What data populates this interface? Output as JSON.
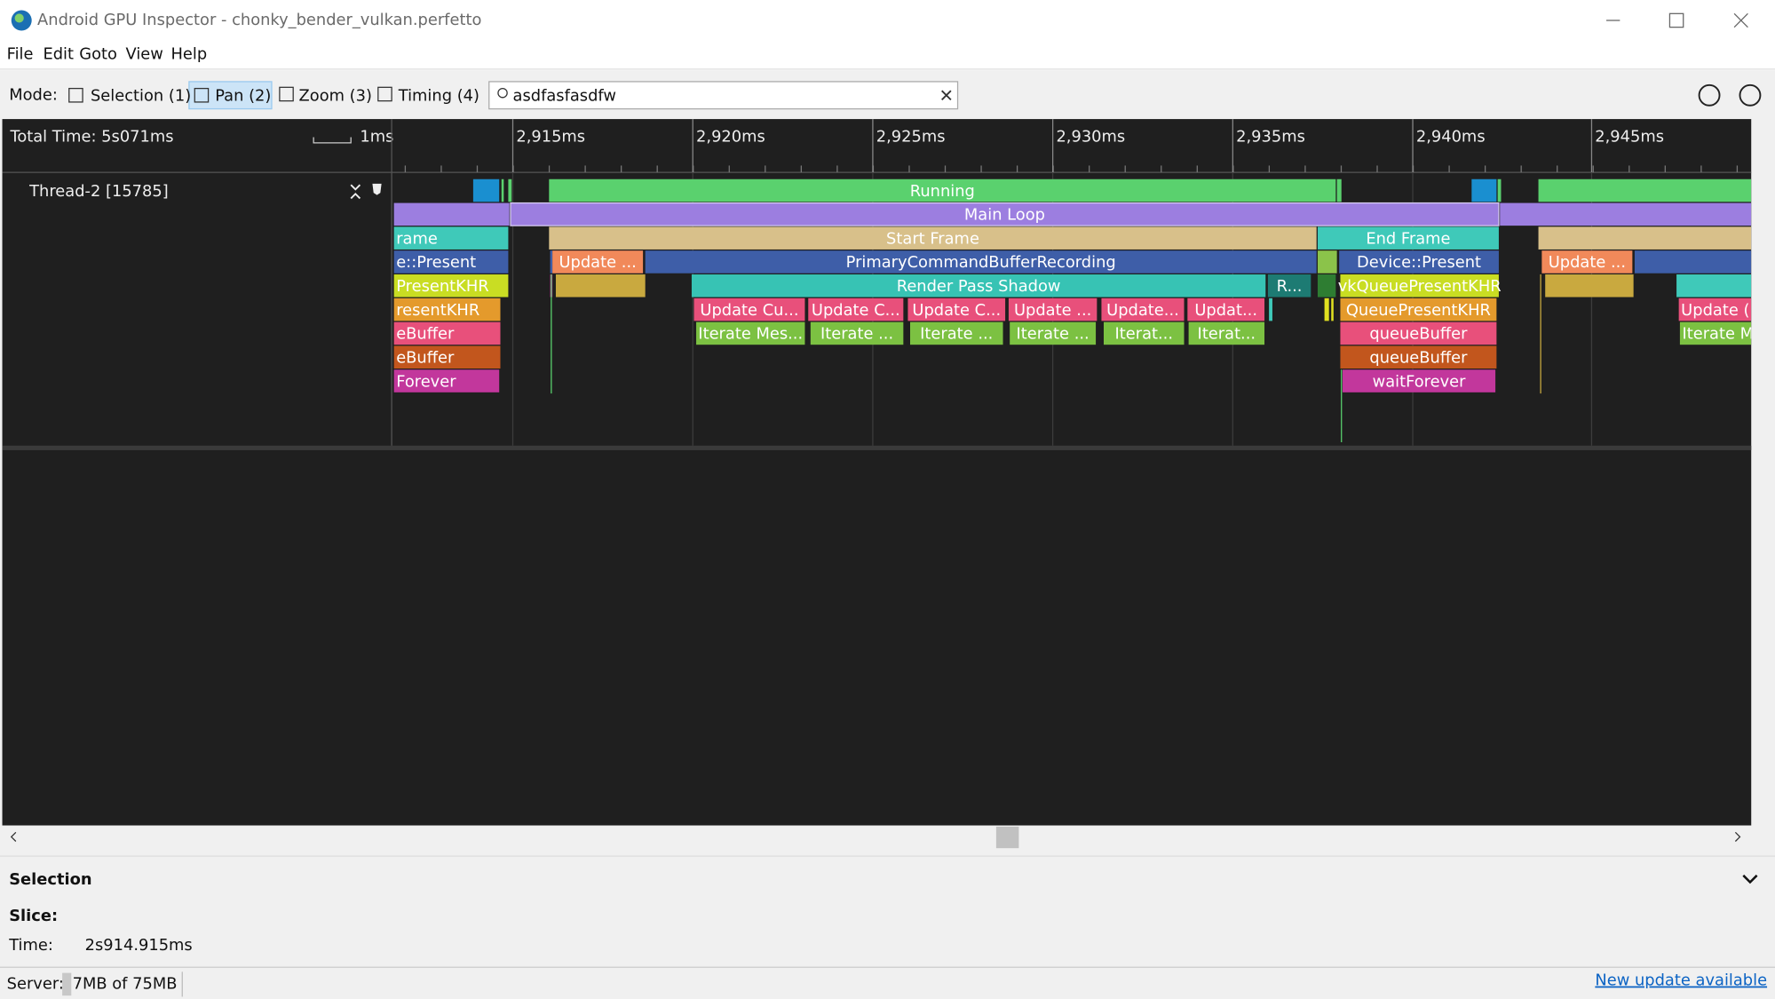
{
  "window": {
    "title": "Android GPU Inspector - chonky_bender_vulkan.perfetto"
  },
  "menu": [
    "File",
    "Edit",
    "Goto",
    "View",
    "Help"
  ],
  "toolbar": {
    "mode_label": "Mode:",
    "modes": [
      "Selection (1)",
      "Pan (2)",
      "Zoom (3)",
      "Timing (4)"
    ],
    "search": "asdfasfasdfw"
  },
  "timeline": {
    "total_time": "Total Time: 5s071ms",
    "scale": "1ms",
    "ticks": [
      "2,915ms",
      "2,920ms",
      "2,925ms",
      "2,930ms",
      "2,935ms",
      "2,940ms",
      "2,945ms"
    ],
    "thread": "Thread-2 [15785]",
    "slices": [
      "Running",
      "Main Loop",
      "rame",
      "Start Frame",
      "End Frame",
      "e::Present",
      "Update ...",
      "PrimaryCommandBufferRecording",
      "Device::Present",
      "Update ...",
      "PresentKHR",
      "Render Pass Shadow",
      "R...",
      "vkQueuePresentKHR",
      "resentKHR",
      "Update Cu...",
      "Update C...",
      "Update C...",
      "Update ...",
      "Update...",
      "Updat...",
      "QueuePresentKHR",
      "Update (",
      "eBuffer",
      "Iterate Mes...",
      "Iterate ...",
      "Iterate ...",
      "Iterate ...",
      "Iterat...",
      "Iterat...",
      "queueBuffer",
      "Iterate M",
      "eBuffer",
      "queueBuffer",
      "Forever",
      "waitForever"
    ]
  },
  "selection": {
    "title": "Selection",
    "slice_label": "Slice:",
    "time_label": "Time:",
    "time_value": "2s914.915ms"
  },
  "status": {
    "server_label": "Server:",
    "memory": "7MB of 75MB",
    "update_link": "New update available"
  }
}
